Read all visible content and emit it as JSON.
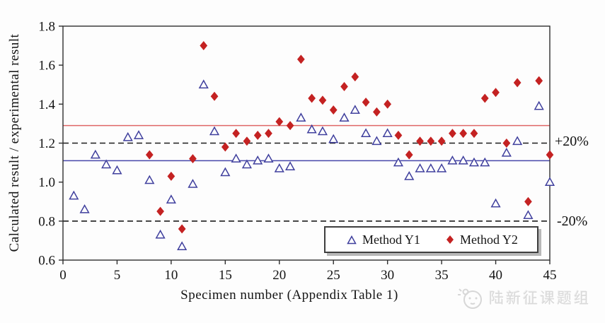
{
  "chart_data": {
    "type": "scatter",
    "title": "",
    "xlabel": "Specimen number (Appendix Table 1)",
    "ylabel": "Calculated result / experimental result",
    "xlim": [
      0,
      45
    ],
    "ylim": [
      0.6,
      1.8
    ],
    "x_ticks": [
      0,
      5,
      10,
      15,
      20,
      25,
      30,
      35,
      40,
      45
    ],
    "y_ticks": [
      0.6,
      0.8,
      1.0,
      1.2,
      1.4,
      1.6,
      1.8
    ],
    "grid": false,
    "frame_color": "#2e2e2e",
    "legend_position": "bottom-right-inside",
    "series": [
      {
        "id": "y1",
        "name": "Method Y1",
        "marker": "triangle-open",
        "color": "#3f3f9d",
        "points": [
          [
            1,
            0.93
          ],
          [
            2,
            0.86
          ],
          [
            3,
            1.14
          ],
          [
            4,
            1.09
          ],
          [
            5,
            1.06
          ],
          [
            6,
            1.23
          ],
          [
            7,
            1.24
          ],
          [
            8,
            1.01
          ],
          [
            9,
            0.73
          ],
          [
            10,
            0.91
          ],
          [
            11,
            0.67
          ],
          [
            12,
            0.99
          ],
          [
            13,
            1.5
          ],
          [
            14,
            1.26
          ],
          [
            15,
            1.05
          ],
          [
            16,
            1.12
          ],
          [
            17,
            1.09
          ],
          [
            18,
            1.11
          ],
          [
            19,
            1.12
          ],
          [
            20,
            1.07
          ],
          [
            21,
            1.08
          ],
          [
            22,
            1.33
          ],
          [
            23,
            1.27
          ],
          [
            24,
            1.26
          ],
          [
            25,
            1.22
          ],
          [
            26,
            1.33
          ],
          [
            27,
            1.37
          ],
          [
            28,
            1.25
          ],
          [
            29,
            1.21
          ],
          [
            30,
            1.25
          ],
          [
            31,
            1.1
          ],
          [
            32,
            1.03
          ],
          [
            33,
            1.07
          ],
          [
            34,
            1.07
          ],
          [
            35,
            1.07
          ],
          [
            36,
            1.11
          ],
          [
            37,
            1.11
          ],
          [
            38,
            1.1
          ],
          [
            39,
            1.1
          ],
          [
            40,
            0.89
          ],
          [
            41,
            1.15
          ],
          [
            42,
            1.21
          ],
          [
            43,
            0.83
          ],
          [
            44,
            1.39
          ],
          [
            45,
            1.0
          ]
        ]
      },
      {
        "id": "y2",
        "name": "Method Y2",
        "marker": "diamond-filled",
        "color": "#c42222",
        "points": [
          [
            8,
            1.14
          ],
          [
            9,
            0.85
          ],
          [
            10,
            1.03
          ],
          [
            11,
            0.76
          ],
          [
            12,
            1.12
          ],
          [
            13,
            1.7
          ],
          [
            14,
            1.44
          ],
          [
            15,
            1.18
          ],
          [
            16,
            1.25
          ],
          [
            17,
            1.21
          ],
          [
            18,
            1.24
          ],
          [
            19,
            1.25
          ],
          [
            20,
            1.31
          ],
          [
            21,
            1.29
          ],
          [
            22,
            1.63
          ],
          [
            23,
            1.43
          ],
          [
            24,
            1.42
          ],
          [
            25,
            1.37
          ],
          [
            26,
            1.49
          ],
          [
            27,
            1.54
          ],
          [
            28,
            1.41
          ],
          [
            29,
            1.36
          ],
          [
            30,
            1.4
          ],
          [
            31,
            1.24
          ],
          [
            32,
            1.14
          ],
          [
            33,
            1.21
          ],
          [
            34,
            1.21
          ],
          [
            35,
            1.21
          ],
          [
            36,
            1.25
          ],
          [
            37,
            1.25
          ],
          [
            38,
            1.25
          ],
          [
            39,
            1.43
          ],
          [
            40,
            1.46
          ],
          [
            41,
            1.2
          ],
          [
            42,
            1.51
          ],
          [
            43,
            0.9
          ],
          [
            44,
            1.52
          ],
          [
            45,
            1.14
          ]
        ]
      }
    ],
    "reference_lines": [
      {
        "y": 1.29,
        "style": "solid",
        "color": "#e06767",
        "label": ""
      },
      {
        "y": 1.11,
        "style": "solid",
        "color": "#4747aa",
        "label": ""
      },
      {
        "y": 1.2,
        "style": "dashed",
        "color": "#1c1c1c",
        "label": "+20%"
      },
      {
        "y": 0.8,
        "style": "dashed",
        "color": "#1c1c1c",
        "label": "-20%"
      }
    ]
  },
  "watermark": {
    "text": "陆新征课题组"
  }
}
